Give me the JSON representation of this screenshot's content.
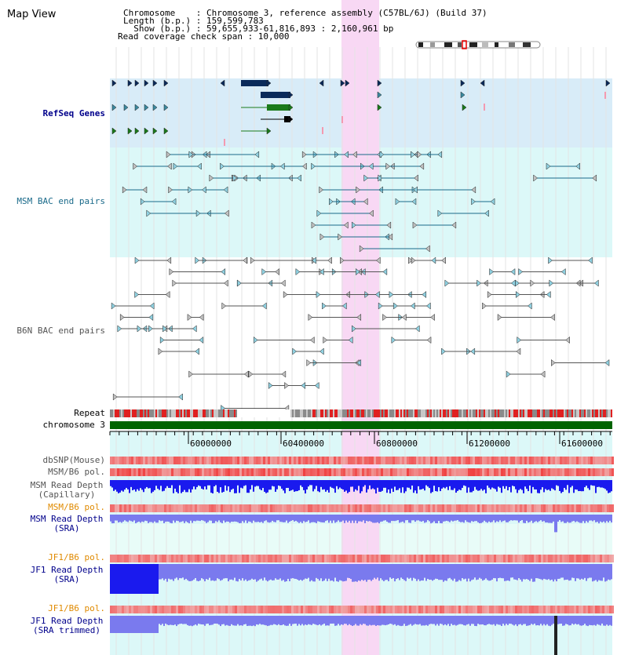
{
  "app": {
    "title": "Map View"
  },
  "header": {
    "chromosome": "Chromosome    : Chromosome 3, reference assembly (C57BL/6J) (Build 37)",
    "length": "Length (b.p.) : 159,599,783",
    "show": "  Show (b.p.) : 59,655,933-61,816,893 : 2,160,961 bp",
    "coverage": "Read coverage check span : 10,000"
  },
  "tracks": {
    "refseq": "RefSeq Genes",
    "msm_bac": "MSM BAC end pairs",
    "b6n_bac": "B6N BAC end pairs",
    "repeat": "Repeat",
    "chromosome": "chromosome 3",
    "dbsnp": "dbSNP(Mouse)",
    "msm_pol": "MSM/B6 pol.",
    "msm_depth_cap_1": "MSM Read Depth",
    "msm_depth_cap_2": "(Capillary)",
    "msm_pol2": "MSM/B6 pol.",
    "msm_depth_sra_1": "MSM Read Depth",
    "msm_depth_sra_2": "(SRA)",
    "jf1_pol": "JF1/B6 pol.",
    "jf1_depth_1": "JF1 Read Depth",
    "jf1_depth_2": "(SRA)",
    "jf1_pol2": "JF1/B6 pol.",
    "jf1_trim_1": "JF1 Read Depth",
    "jf1_trim_2": "(SRA trimmed)"
  },
  "axis": {
    "ticks": [
      "60000000",
      "60400000",
      "60800000",
      "61200000",
      "61600000"
    ]
  },
  "colors": {
    "highlight": "#f8d8f4",
    "refseq_bg": "#d8ecf8",
    "msm_bg": "#dcf8f8",
    "lower_bg": "#e8fcf8",
    "refseq_navy": "#0a2a5a",
    "refseq_teal": "#3a8aa0",
    "refseq_green": "#1a7a1a",
    "msm_line": "#1a6a8a",
    "b6n_line": "#555555",
    "depth_blue": "#1a1aee",
    "depth_light": "#7a7aee",
    "label_navy": "#00008b",
    "label_orange": "#e08a00",
    "chrom_green": "#006400"
  }
}
